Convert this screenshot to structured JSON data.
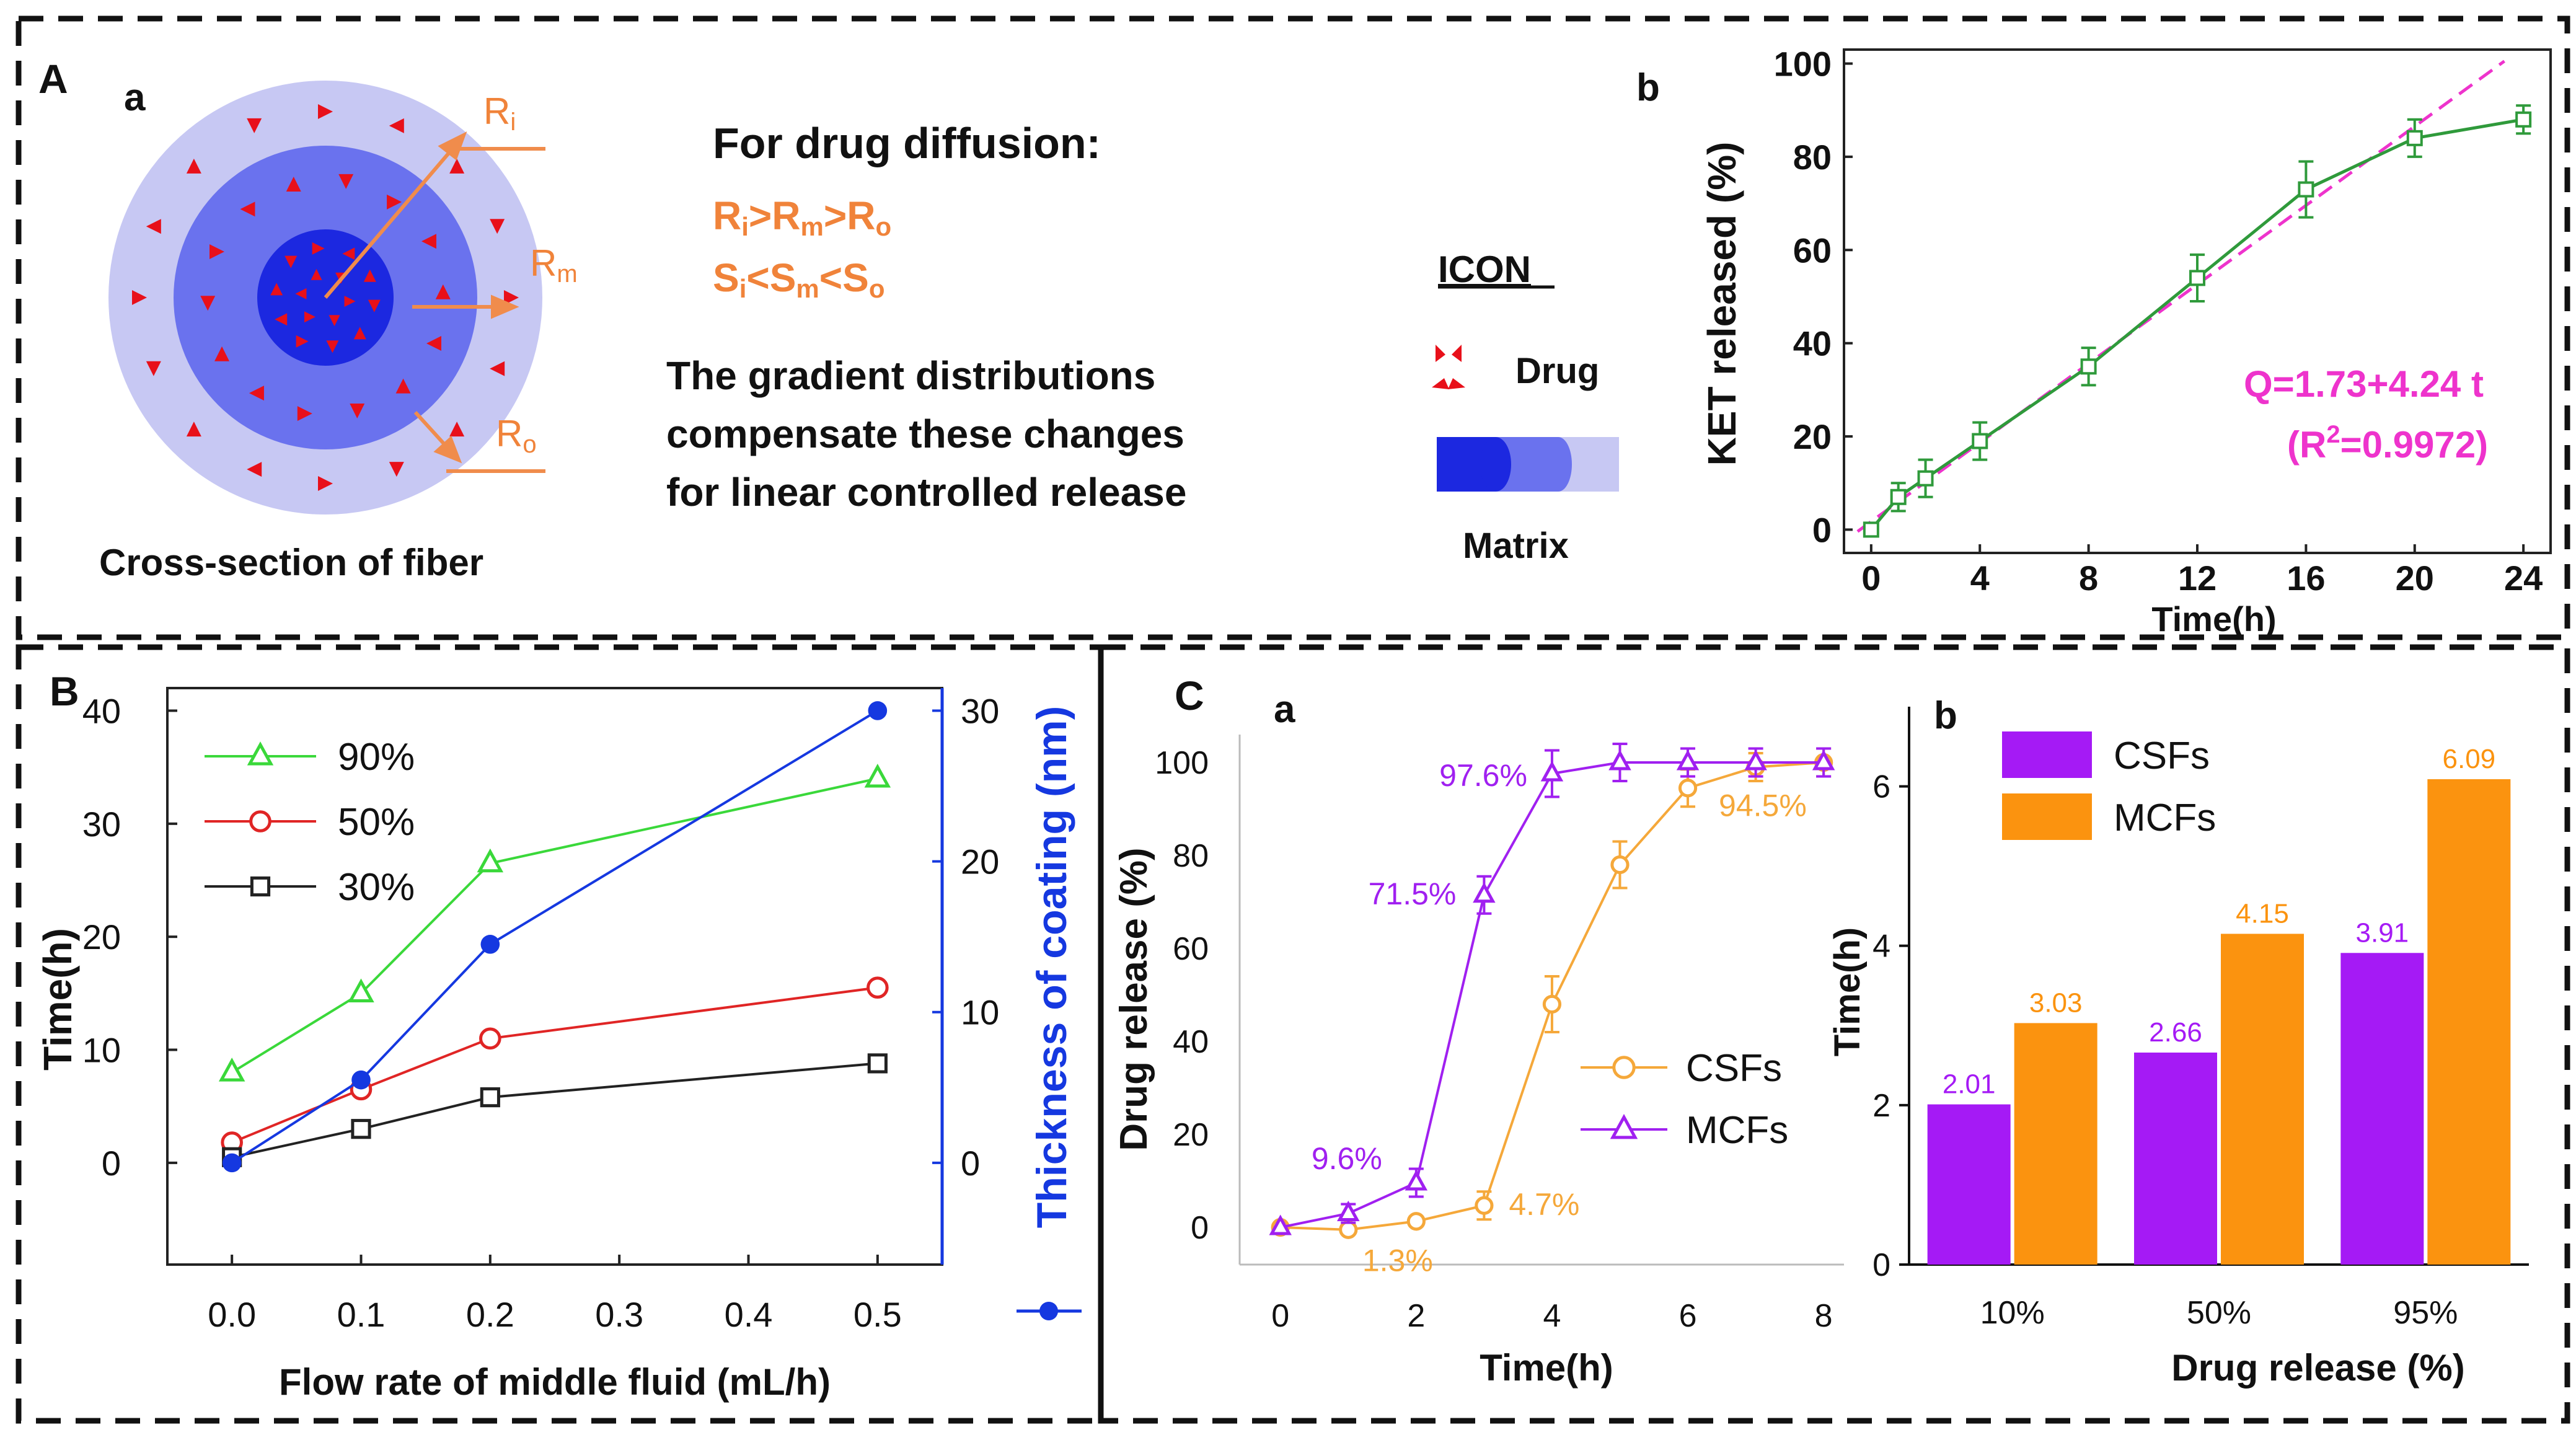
{
  "panel_labels": {
    "A": "A",
    "B": "B",
    "C": "C",
    "Aa": "a",
    "Ab": "b",
    "Ca": "a",
    "Cb": "b"
  },
  "panel_a": {
    "radius_labels": {
      "ri_main": "R",
      "ri_sub": "i",
      "rm_main": "R",
      "rm_sub": "m",
      "ro_main": "R",
      "ro_sub": "o"
    },
    "caption": "Cross-section of fiber",
    "heading": "For drug diffusion:",
    "r_relation": {
      "r1": "R",
      "s1": "i",
      "op1": ">",
      "r2": "R",
      "s2": "m",
      "op2": ">",
      "r3": "R",
      "s3": "o"
    },
    "s_relation": {
      "r1": "S",
      "s1": "i",
      "op1": "<",
      "r2": "S",
      "s2": "m",
      "op2": "<",
      "r3": "S",
      "s3": "o"
    },
    "description_lines": [
      "The gradient distributions",
      "compensate these changes",
      "for linear controlled release"
    ],
    "legend_title": "ICON",
    "legend_drug": "Drug",
    "legend_matrix": "Matrix",
    "colors": {
      "outer": "#c8c9f2",
      "middle": "#6a74ee",
      "inner": "#1c28e0",
      "drug": "#e8101a",
      "arrow": "#f08c4c",
      "orange_text": "#f0833a"
    }
  },
  "chart_data": [
    {
      "id": "Ab",
      "type": "line",
      "title": "",
      "xlabel": "Time(h)",
      "ylabel": "KET released (%)",
      "xlim": [
        -1,
        25
      ],
      "ylim": [
        -5,
        103
      ],
      "xticks": [
        0,
        4,
        8,
        12,
        16,
        20,
        24
      ],
      "yticks": [
        0,
        20,
        40,
        60,
        80,
        100
      ],
      "series": [
        {
          "name": "KET",
          "color": "#2f9a3b",
          "x": [
            0,
            1,
            2,
            4,
            8,
            12,
            16,
            20,
            24
          ],
          "y": [
            0,
            7,
            11,
            19,
            35,
            54,
            73,
            84,
            88
          ],
          "err": [
            1,
            3,
            4,
            4,
            4,
            5,
            6,
            4,
            3
          ]
        }
      ],
      "fit": {
        "intercept": 1.73,
        "slope": 4.24,
        "color": "#ee33cc"
      },
      "annotations": [
        "Q=1.73+4.24 t",
        "(R",
        "2",
        "=0.9972)"
      ]
    },
    {
      "id": "B",
      "type": "line",
      "xlabel": "Flow rate of middle fluid (mL/h)",
      "ylabel": "Time(h)",
      "y2label": "Thickness of coating (nm)",
      "xlim": [
        -0.05,
        0.55
      ],
      "ylim": [
        -9,
        42
      ],
      "y2lim": [
        -6.75,
        31.5
      ],
      "xticks": [
        0.0,
        0.1,
        0.2,
        0.3,
        0.4,
        0.5
      ],
      "yticks": [
        0,
        10,
        20,
        30,
        40
      ],
      "y2ticks": [
        0,
        10,
        20,
        30
      ],
      "x": [
        0.0,
        0.1,
        0.2,
        0.5
      ],
      "series": [
        {
          "name": "90%",
          "color": "#3ad83a",
          "marker": "triangle",
          "values": [
            8,
            15,
            26.5,
            34
          ],
          "axis": "left"
        },
        {
          "name": "50%",
          "color": "#e02525",
          "marker": "circle",
          "values": [
            1.8,
            6.5,
            11,
            15.5
          ],
          "axis": "left"
        },
        {
          "name": "30%",
          "color": "#222222",
          "marker": "square",
          "values": [
            0.5,
            3,
            5.8,
            8.8
          ],
          "axis": "left"
        },
        {
          "name": "thickness",
          "color": "#1538e0",
          "marker": "filled-circle",
          "values": [
            0,
            5.5,
            14.5,
            30
          ],
          "axis": "right"
        }
      ]
    },
    {
      "id": "Ca",
      "type": "line",
      "xlabel": "Time(h)",
      "ylabel": "Drug release (%)",
      "xlim": [
        -0.6,
        8.3
      ],
      "ylim": [
        -8,
        106
      ],
      "xticks": [
        0,
        2,
        4,
        6,
        8
      ],
      "yticks": [
        0,
        20,
        40,
        60,
        80,
        100
      ],
      "series": [
        {
          "name": "CSFs",
          "color": "#f5a83a",
          "marker": "circle",
          "x": [
            0,
            1,
            2,
            3,
            4,
            5,
            6,
            7,
            8
          ],
          "y": [
            0,
            -0.5,
            1.3,
            4.7,
            48,
            78,
            94.5,
            99,
            100
          ],
          "err": [
            0,
            0,
            1,
            3,
            6,
            5,
            4,
            3,
            3
          ]
        },
        {
          "name": "MCFs",
          "color": "#a020f0",
          "marker": "triangle",
          "x": [
            0,
            1,
            2,
            3,
            4,
            5,
            6,
            7,
            8
          ],
          "y": [
            0,
            3,
            9.6,
            71.5,
            97.6,
            100,
            100,
            100,
            100
          ],
          "err": [
            0,
            2,
            3,
            4,
            5,
            4,
            3,
            3,
            3
          ]
        }
      ],
      "labels": {
        "mcf_2": "9.6%",
        "mcf_3": "71.5%",
        "mcf_4": "97.6%",
        "csf_2": "1.3%",
        "csf_3": "4.7%",
        "csf_6": "94.5%"
      }
    },
    {
      "id": "Cb",
      "type": "bar",
      "xlabel": "Drug release (%)",
      "ylabel": "Time(h)",
      "ylim": [
        0,
        7
      ],
      "yticks": [
        0,
        2,
        4,
        6
      ],
      "categories": [
        "10%",
        "50%",
        "95%"
      ],
      "series": [
        {
          "name": "CSFs",
          "color": "#a51af5",
          "values": [
            2.01,
            2.66,
            3.91
          ],
          "labels": [
            "2.01",
            "2.66",
            "3.91"
          ]
        },
        {
          "name": "MCFs",
          "color": "#fb930f",
          "values": [
            3.03,
            4.15,
            6.09
          ],
          "labels": [
            "3.03",
            "4.15",
            "6.09"
          ]
        }
      ]
    }
  ]
}
